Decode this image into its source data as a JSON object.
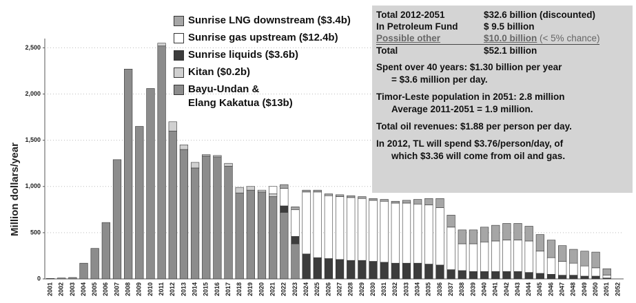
{
  "chart_data": {
    "type": "stacked_bar",
    "y_label": "Million dollars/year",
    "categories": [
      "2001",
      "2002",
      "2003",
      "2004",
      "2005",
      "2006",
      "2007",
      "2008",
      "2009",
      "2010",
      "2011",
      "2012",
      "2013",
      "2014",
      "2015",
      "2016",
      "2017",
      "2018",
      "2019",
      "2020",
      "2021",
      "2022",
      "2023",
      "2024",
      "2025",
      "2026",
      "2027",
      "2028",
      "2029",
      "2030",
      "2031",
      "2032",
      "2033",
      "2034",
      "2035",
      "2036",
      "2037",
      "2038",
      "2039",
      "2040",
      "2041",
      "2042",
      "2043",
      "2044",
      "2045",
      "2046",
      "2047",
      "2048",
      "2049",
      "2050",
      "2051",
      "2052"
    ],
    "series": [
      {
        "name": "Bayu-Undan &\nElang Kakatua ($13b)",
        "color": "#8c8c8c",
        "values": [
          5,
          10,
          15,
          170,
          330,
          610,
          1290,
          2270,
          1650,
          2060,
          2520,
          1600,
          1400,
          1200,
          1330,
          1320,
          1220,
          930,
          960,
          940,
          890,
          720,
          380,
          0,
          0,
          0,
          0,
          0,
          0,
          0,
          0,
          0,
          0,
          0,
          0,
          0,
          0,
          0,
          0,
          0,
          0,
          0,
          0,
          0,
          0,
          0,
          0,
          0,
          0,
          0,
          0,
          0
        ]
      },
      {
        "name": "Kitan ($0.2b)",
        "color": "#d0d0d0",
        "values": [
          0,
          0,
          0,
          0,
          0,
          0,
          0,
          0,
          0,
          0,
          30,
          100,
          50,
          60,
          15,
          15,
          30,
          60,
          40,
          20,
          30,
          0,
          0,
          0,
          0,
          0,
          0,
          0,
          0,
          0,
          0,
          0,
          0,
          0,
          0,
          0,
          0,
          0,
          0,
          0,
          0,
          0,
          0,
          0,
          0,
          0,
          0,
          0,
          0,
          0,
          0,
          0
        ]
      },
      {
        "name": "Sunrise liquids ($3.6b)",
        "color": "#3c3c3c",
        "values": [
          0,
          0,
          0,
          0,
          0,
          0,
          0,
          0,
          0,
          0,
          0,
          0,
          0,
          0,
          0,
          0,
          0,
          0,
          0,
          0,
          0,
          70,
          80,
          270,
          230,
          220,
          210,
          200,
          200,
          190,
          180,
          170,
          170,
          170,
          160,
          150,
          100,
          90,
          80,
          80,
          80,
          80,
          80,
          70,
          60,
          50,
          40,
          40,
          30,
          30,
          10,
          0
        ]
      },
      {
        "name": "Sunrise gas upstream ($12.4b)",
        "color": "#ffffff",
        "values": [
          0,
          0,
          0,
          0,
          0,
          0,
          0,
          0,
          0,
          0,
          0,
          0,
          0,
          0,
          0,
          0,
          0,
          0,
          0,
          0,
          80,
          190,
          290,
          670,
          710,
          680,
          680,
          680,
          670,
          660,
          660,
          650,
          650,
          640,
          640,
          620,
          460,
          290,
          300,
          320,
          330,
          340,
          340,
          340,
          240,
          180,
          150,
          130,
          110,
          90,
          30,
          0
        ]
      },
      {
        "name": "Sunrise LNG downstream ($3.4b)",
        "color": "#a6a6a6",
        "values": [
          0,
          0,
          0,
          0,
          0,
          0,
          0,
          0,
          0,
          0,
          0,
          0,
          0,
          0,
          0,
          0,
          0,
          0,
          0,
          0,
          0,
          40,
          30,
          20,
          20,
          20,
          20,
          20,
          20,
          20,
          20,
          20,
          30,
          50,
          70,
          100,
          130,
          150,
          150,
          160,
          170,
          180,
          180,
          160,
          180,
          190,
          170,
          150,
          160,
          170,
          70,
          0
        ]
      }
    ],
    "ylim": [
      0,
      2600
    ],
    "yticks": [
      0,
      {
        "value": 500,
        "label": "500"
      },
      {
        "value": 1000,
        "label": "1,000"
      },
      {
        "value": 1500,
        "label": "1,500"
      },
      {
        "value": 2000,
        "label": "2,000"
      },
      {
        "value": 2500,
        "label": "2,500"
      }
    ],
    "grid": true,
    "summary_rows": [
      [
        "Total 2012-2051",
        "$32.6 billion (discounted)"
      ],
      [
        "In Petroleum Fund",
        "$ 9.5 billion"
      ],
      [
        "Possible other",
        "$10.0 billion",
        "(< 5% chance)"
      ],
      [
        "Total",
        "$52.1 billion"
      ]
    ],
    "notes": [
      "Spent over 40 years: $1.30 billion per year\n= $3.6 million per day.",
      "Timor-Leste population in 2051: 2.8 million\nAverage 2011-2051 = 1.9 million.",
      "Total oil revenues: $1.88 per person per day.",
      "In 2012, TL will spend $3.76/person/day, of\nwhich $3.36 will come from oil and gas."
    ]
  }
}
